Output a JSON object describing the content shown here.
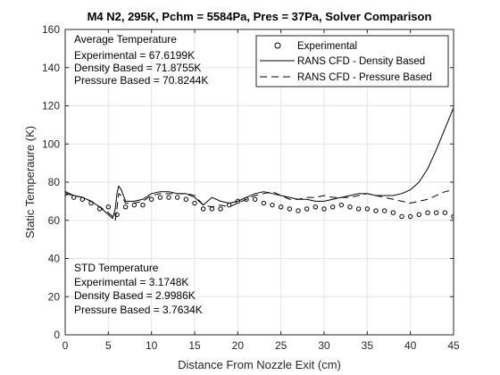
{
  "chart_data": {
    "type": "line",
    "title": "M4 N2, 295K, Pchm = 5584Pa, Pres = 37Pa, Solver Comparison",
    "xlabel": "Distance From Nozzle Exit (cm)",
    "ylabel": "Static Temperaure (K)",
    "xlim": [
      0,
      45
    ],
    "ylim": [
      0,
      160
    ],
    "xticks": [
      0,
      5,
      10,
      15,
      20,
      25,
      30,
      35,
      40,
      45
    ],
    "yticks": [
      0,
      20,
      40,
      60,
      80,
      100,
      120,
      140,
      160
    ],
    "grid": true,
    "legend_position": "top-right",
    "series": [
      {
        "name": "Experimental",
        "style": "markers-circle",
        "color": "#000000",
        "x": [
          0,
          1,
          2,
          3,
          4,
          5,
          6,
          7,
          8,
          9,
          10,
          11,
          12,
          13,
          14,
          15,
          16,
          17,
          18,
          19,
          20,
          21,
          22,
          23,
          24,
          25,
          26,
          27,
          28,
          29,
          30,
          31,
          32,
          33,
          34,
          35,
          36,
          37,
          38,
          39,
          40,
          41,
          42,
          43,
          44,
          45
        ],
        "y": [
          74,
          72,
          71,
          69,
          66,
          67,
          63,
          67,
          68,
          68,
          71,
          72,
          72,
          72,
          71,
          69,
          66,
          66,
          66,
          68,
          70,
          71,
          71,
          69,
          68,
          67,
          66,
          65,
          66,
          67,
          66,
          67,
          68,
          67,
          66,
          66,
          65,
          65,
          64,
          62,
          62,
          63,
          64,
          64,
          64,
          62
        ]
      },
      {
        "name": "RANS CFD - Density Based",
        "style": "solid",
        "color": "#000000",
        "x": [
          0,
          1,
          2,
          3,
          4,
          5,
          5.5,
          5.8,
          6.0,
          6.2,
          6.5,
          7,
          8,
          9,
          10,
          11,
          12,
          13,
          14,
          15,
          16,
          17,
          18,
          19,
          20,
          21,
          22,
          23,
          24,
          25,
          26,
          27,
          28,
          29,
          30,
          31,
          32,
          33,
          34,
          35,
          36,
          37,
          38,
          39,
          40,
          41,
          42,
          43,
          44,
          45
        ],
        "y": [
          75,
          73,
          72,
          70,
          67,
          63,
          61,
          66,
          74,
          78,
          76,
          70,
          70,
          71,
          74,
          75,
          75,
          74,
          74,
          72,
          68,
          72,
          70,
          69,
          70,
          72,
          74,
          75,
          74,
          73,
          72,
          71,
          71,
          70,
          70,
          71,
          72,
          73,
          74,
          74,
          73,
          73,
          73,
          74,
          76,
          80,
          87,
          97,
          108,
          119
        ]
      },
      {
        "name": "RANS CFD - Pressure Based",
        "style": "dashed",
        "color": "#000000",
        "x": [
          0,
          1,
          2,
          3,
          4,
          5,
          5.5,
          5.8,
          6.0,
          6.2,
          6.5,
          7,
          8,
          9,
          10,
          11,
          12,
          13,
          14,
          15,
          16,
          17,
          18,
          19,
          20,
          21,
          22,
          23,
          24,
          25,
          26,
          27,
          28,
          29,
          30,
          31,
          32,
          33,
          34,
          35,
          36,
          37,
          38,
          39,
          40,
          41,
          42,
          43,
          44,
          45
        ],
        "y": [
          74,
          73,
          72,
          70,
          67,
          64,
          62,
          60,
          66,
          74,
          73,
          69,
          69,
          70,
          73,
          74,
          74,
          74,
          74,
          73,
          68,
          67,
          68,
          67,
          69,
          71,
          73,
          74,
          75,
          73,
          71,
          71,
          72,
          72,
          73,
          72,
          72,
          72,
          73,
          74,
          73,
          72,
          71,
          70,
          69,
          70,
          71,
          73,
          75,
          76
        ]
      }
    ],
    "annotations": {
      "average": {
        "heading": "Average Temperature",
        "lines": [
          "Experimental = 67.6199K",
          "Density Based = 71.8755K",
          "Pressure Based = 70.8244K"
        ]
      },
      "std": {
        "heading": "STD Temperature",
        "lines": [
          "Experimental = 3.1748K",
          "Density Based = 2.9986K",
          "Pressure Based = 3.7634K"
        ]
      }
    }
  }
}
